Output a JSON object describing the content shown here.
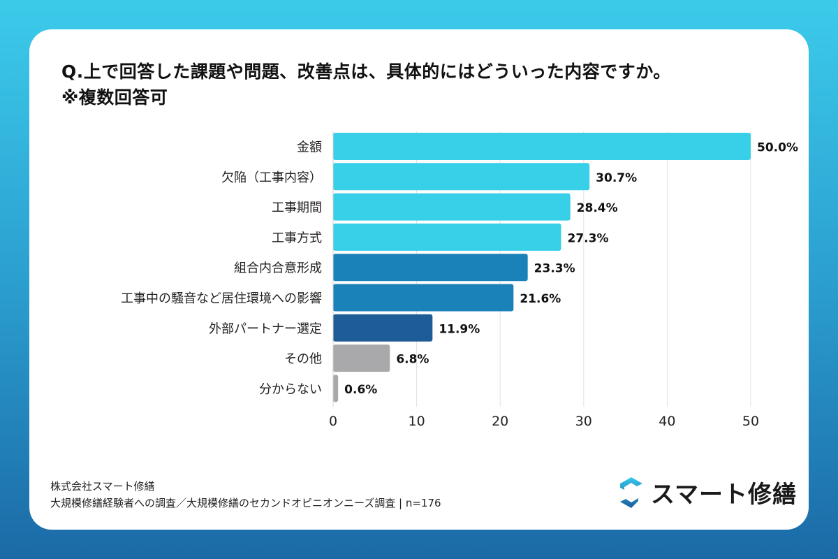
{
  "title_line1": "Q.上で回答した課題や問題、改善点は、具体的にはどういった内容ですか。",
  "title_line2": "※複数回答可",
  "chart_data": {
    "type": "bar",
    "orientation": "horizontal",
    "categories": [
      "金額",
      "欠陥（工事内容）",
      "工事期間",
      "工事方式",
      "組合内合意形成",
      "工事中の騒音など居住環境への影響",
      "外部パートナー選定",
      "その他",
      "分からない"
    ],
    "values": [
      50.0,
      30.7,
      28.4,
      27.3,
      23.3,
      21.6,
      11.9,
      6.8,
      0.6
    ],
    "data_labels": [
      "50.0%",
      "30.7%",
      "28.4%",
      "27.3%",
      "23.3%",
      "21.6%",
      "11.9%",
      "6.8%",
      "0.6%"
    ],
    "bar_colors": [
      "#38cfe9",
      "#38cfe9",
      "#38cfe9",
      "#38cfe9",
      "#1a82b8",
      "#1a82b8",
      "#1d5c96",
      "#a9a8aa",
      "#a9a8aa"
    ],
    "xlim": [
      0,
      50
    ],
    "xticks": [
      0,
      10,
      20,
      30,
      40,
      50
    ],
    "grid": true,
    "xlabel": "",
    "ylabel": ""
  },
  "footer": {
    "line1": "株式会社スマート修繕",
    "line2": "大規模修繕経験者への調査／大規模修繕のセカンドオピニオンニーズ調査 | n=176"
  },
  "logo": {
    "text": "スマート修繕",
    "icon": "s-hexagon-logo-icon"
  }
}
